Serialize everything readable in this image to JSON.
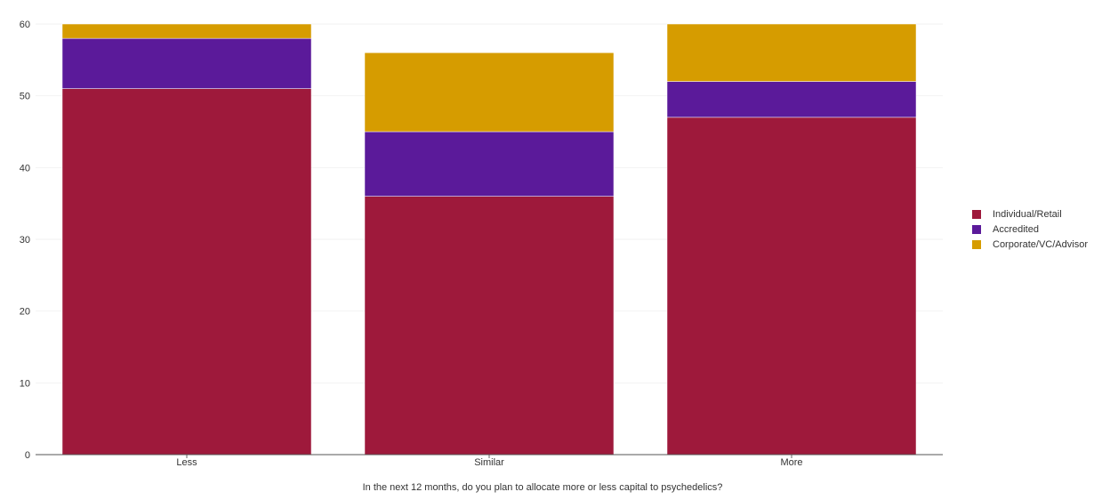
{
  "chart_data": {
    "type": "bar",
    "stacked": true,
    "title": "",
    "xlabel": "In the next 12 months, do you plan to allocate more or less capital to psychedelics?",
    "ylabel": "",
    "ylim": [
      0,
      60
    ],
    "yticks": [
      0,
      10,
      20,
      30,
      40,
      50,
      60
    ],
    "categories": [
      "Less",
      "Similar",
      "More"
    ],
    "series": [
      {
        "name": "Individual/Retail",
        "color": "#9e193b",
        "values": [
          51,
          36,
          47
        ]
      },
      {
        "name": "Accredited",
        "color": "#5b1a9a",
        "values": [
          7,
          9,
          5
        ]
      },
      {
        "name": "Corporate/VC/Advisor",
        "color": "#d69c00",
        "values": [
          2,
          11,
          8
        ]
      }
    ],
    "grid": true,
    "legend": "right"
  }
}
